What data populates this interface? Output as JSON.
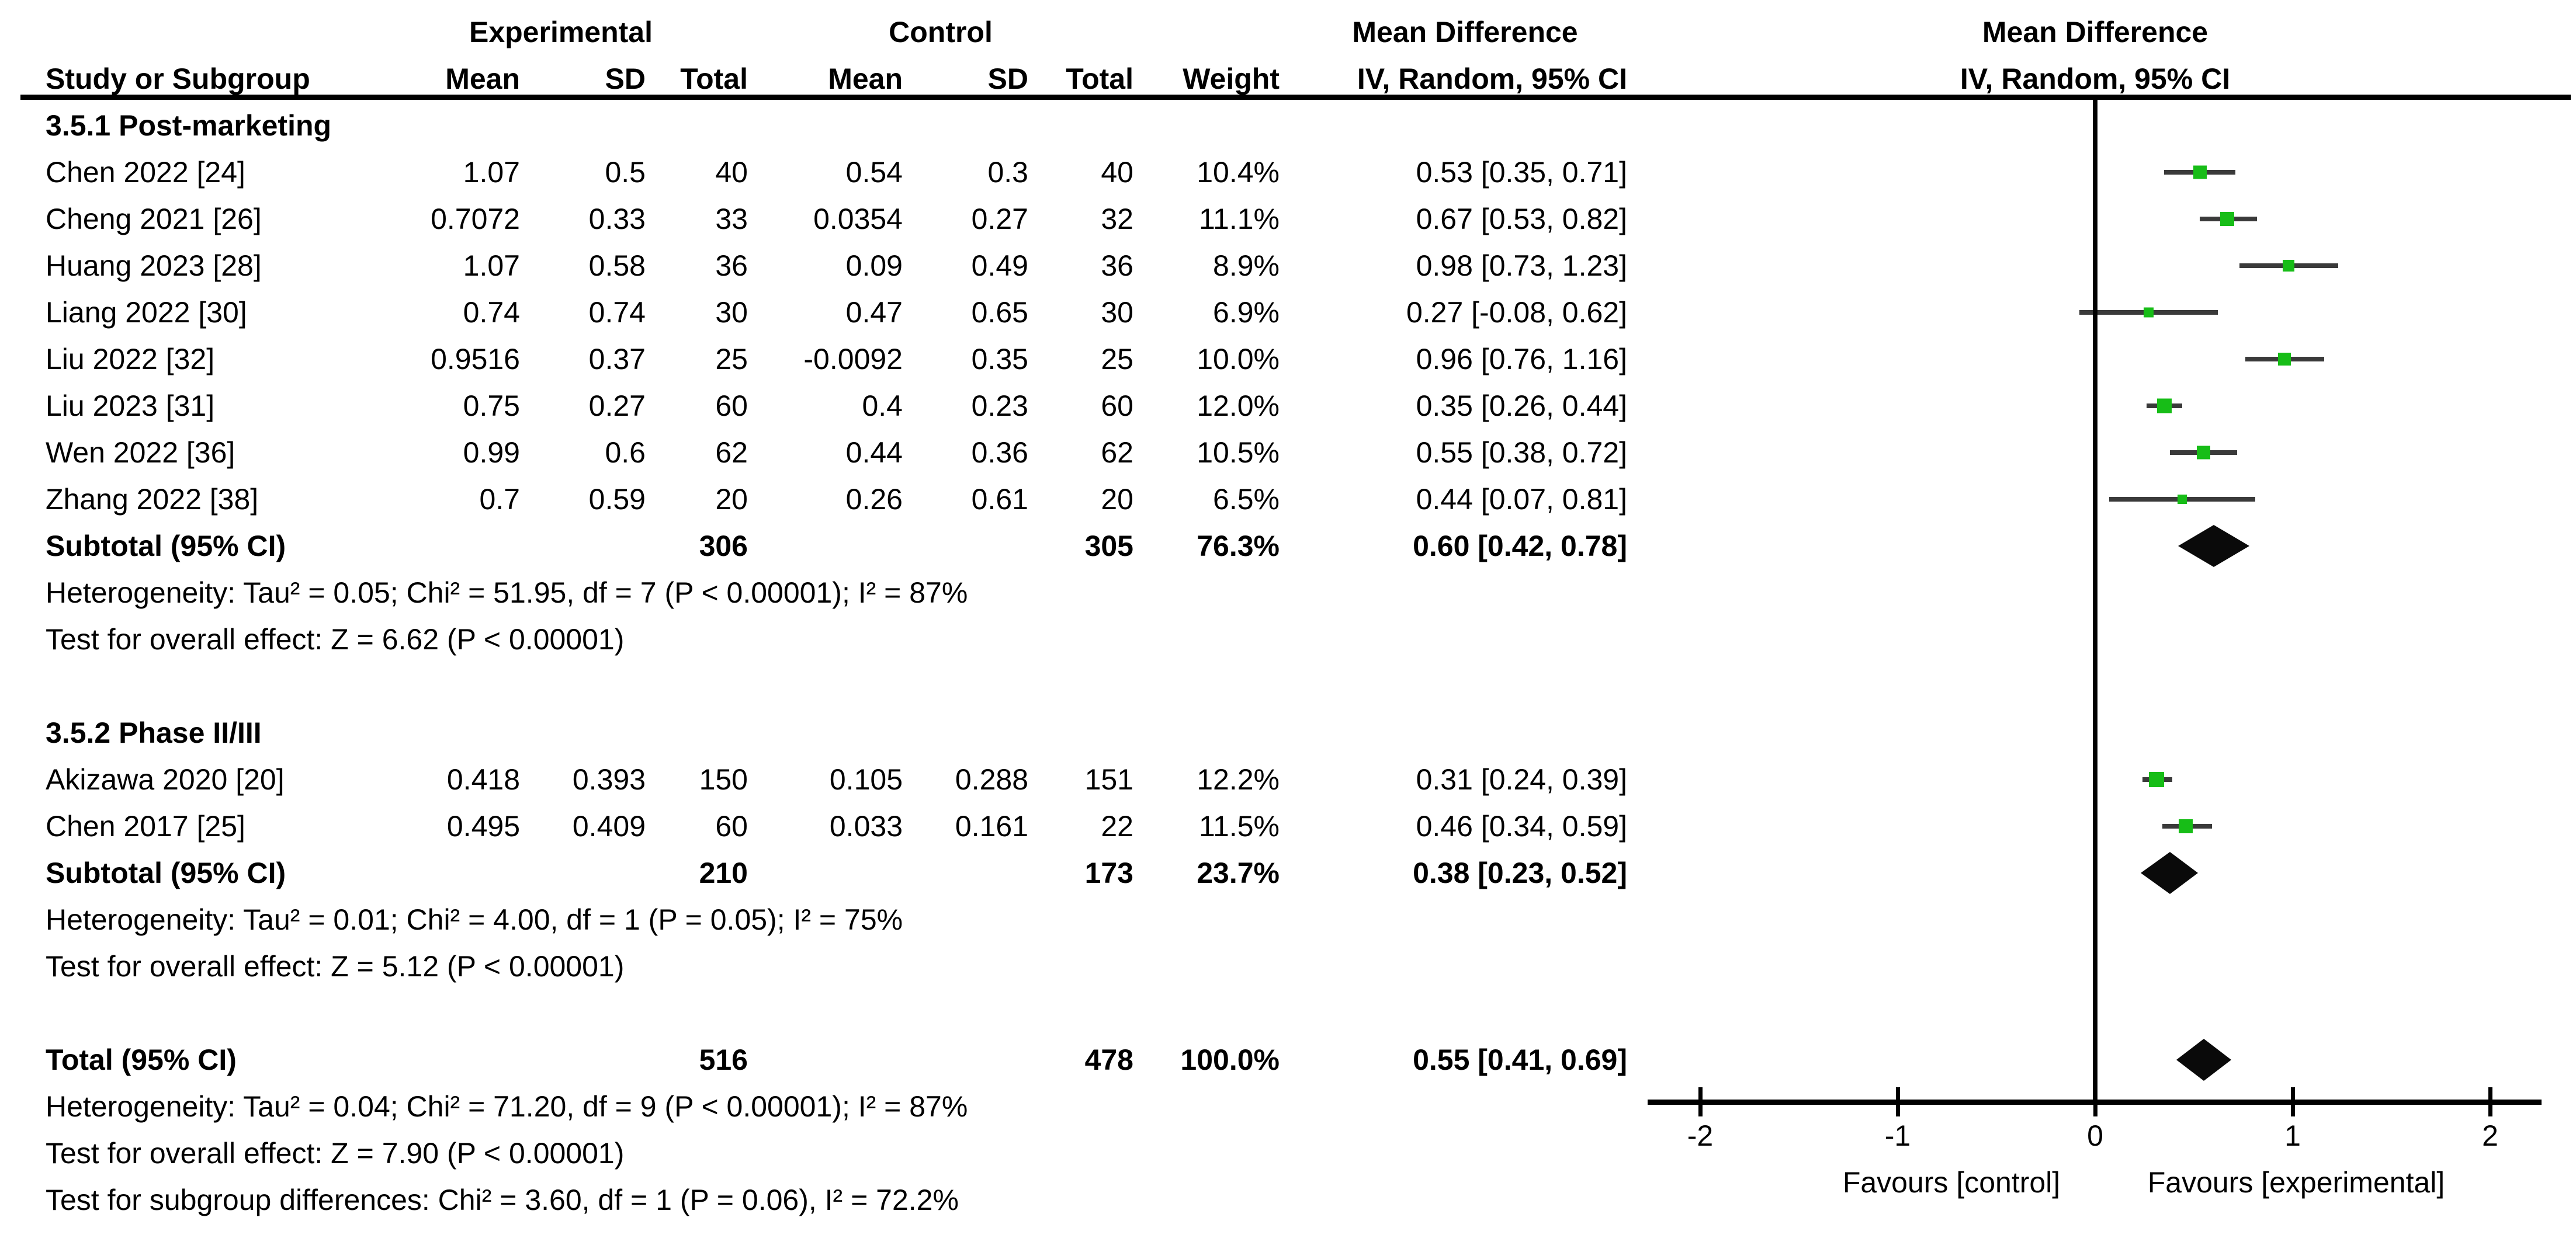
{
  "header": {
    "study": "Study or Subgroup",
    "experimental": "Experimental",
    "control": "Control",
    "mean": "Mean",
    "sd": "SD",
    "total": "Total",
    "weight": "Weight",
    "md": "Mean Difference",
    "iv": "IV, Random, 95% CI"
  },
  "plot": {
    "favours_left": "Favours [control]",
    "favours_right": "Favours [experimental]",
    "square_color": "#17bd17",
    "ci_color": "#3a3a3a",
    "diamond_color": "#0a0a0a",
    "line_color": "#000000"
  },
  "chart_data": {
    "type": "forest",
    "title": "Mean Difference",
    "method": "IV, Random, 95% CI",
    "xlabel_ticks": [
      -2,
      -1,
      0,
      1,
      2
    ],
    "xlim": [
      -2.3,
      2.45
    ],
    "favours_left": "Favours [control]",
    "favours_right": "Favours [experimental]",
    "subgroups": [
      {
        "label": "3.5.1 Post-marketing",
        "studies": [
          {
            "name": "Chen 2022 [24]",
            "e_mean": "1.07",
            "e_sd": "0.5",
            "e_n": "40",
            "c_mean": "0.54",
            "c_sd": "0.3",
            "c_n": "40",
            "weight": 10.4,
            "md": 0.53,
            "lo": 0.35,
            "hi": 0.71
          },
          {
            "name": "Cheng 2021 [26]",
            "e_mean": "0.7072",
            "e_sd": "0.33",
            "e_n": "33",
            "c_mean": "0.0354",
            "c_sd": "0.27",
            "c_n": "32",
            "weight": 11.1,
            "md": 0.67,
            "lo": 0.53,
            "hi": 0.82
          },
          {
            "name": "Huang 2023 [28]",
            "e_mean": "1.07",
            "e_sd": "0.58",
            "e_n": "36",
            "c_mean": "0.09",
            "c_sd": "0.49",
            "c_n": "36",
            "weight": 8.9,
            "md": 0.98,
            "lo": 0.73,
            "hi": 1.23
          },
          {
            "name": "Liang 2022 [30]",
            "e_mean": "0.74",
            "e_sd": "0.74",
            "e_n": "30",
            "c_mean": "0.47",
            "c_sd": "0.65",
            "c_n": "30",
            "weight": 6.9,
            "md": 0.27,
            "lo": -0.08,
            "hi": 0.62
          },
          {
            "name": "Liu 2022 [32]",
            "e_mean": "0.9516",
            "e_sd": "0.37",
            "e_n": "25",
            "c_mean": "-0.0092",
            "c_sd": "0.35",
            "c_n": "25",
            "weight": 10.0,
            "md": 0.96,
            "lo": 0.76,
            "hi": 1.16
          },
          {
            "name": "Liu 2023 [31]",
            "e_mean": "0.75",
            "e_sd": "0.27",
            "e_n": "60",
            "c_mean": "0.4",
            "c_sd": "0.23",
            "c_n": "60",
            "weight": 12.0,
            "md": 0.35,
            "lo": 0.26,
            "hi": 0.44
          },
          {
            "name": "Wen 2022 [36]",
            "e_mean": "0.99",
            "e_sd": "0.6",
            "e_n": "62",
            "c_mean": "0.44",
            "c_sd": "0.36",
            "c_n": "62",
            "weight": 10.5,
            "md": 0.55,
            "lo": 0.38,
            "hi": 0.72
          },
          {
            "name": "Zhang 2022 [38]",
            "e_mean": "0.7",
            "e_sd": "0.59",
            "e_n": "20",
            "c_mean": "0.26",
            "c_sd": "0.61",
            "c_n": "20",
            "weight": 6.5,
            "md": 0.44,
            "lo": 0.07,
            "hi": 0.81
          }
        ],
        "subtotal": {
          "label": "Subtotal (95% CI)",
          "e_n": "306",
          "c_n": "305",
          "weight": 76.3,
          "md": 0.6,
          "lo": 0.42,
          "hi": 0.78
        },
        "heterogeneity": "Heterogeneity: Tau² = 0.05; Chi² = 51.95, df = 7 (P < 0.00001); I² = 87%",
        "overall_effect": "Test for overall effect: Z = 6.62 (P < 0.00001)"
      },
      {
        "label": "3.5.2 Phase II/III",
        "studies": [
          {
            "name": "Akizawa 2020 [20]",
            "e_mean": "0.418",
            "e_sd": "0.393",
            "e_n": "150",
            "c_mean": "0.105",
            "c_sd": "0.288",
            "c_n": "151",
            "weight": 12.2,
            "md": 0.31,
            "lo": 0.24,
            "hi": 0.39
          },
          {
            "name": "Chen 2017 [25]",
            "e_mean": "0.495",
            "e_sd": "0.409",
            "e_n": "60",
            "c_mean": "0.033",
            "c_sd": "0.161",
            "c_n": "22",
            "weight": 11.5,
            "md": 0.46,
            "lo": 0.34,
            "hi": 0.59
          }
        ],
        "subtotal": {
          "label": "Subtotal (95% CI)",
          "e_n": "210",
          "c_n": "173",
          "weight": 23.7,
          "md": 0.38,
          "lo": 0.23,
          "hi": 0.52
        },
        "heterogeneity": "Heterogeneity: Tau² = 0.01; Chi² = 4.00, df = 1 (P = 0.05); I² = 75%",
        "overall_effect": "Test for overall effect: Z = 5.12 (P < 0.00001)"
      }
    ],
    "total": {
      "label": "Total (95% CI)",
      "e_n": "516",
      "c_n": "478",
      "weight": 100.0,
      "md": 0.55,
      "lo": 0.41,
      "hi": 0.69
    },
    "total_heterogeneity": "Heterogeneity: Tau² = 0.04; Chi² = 71.20, df = 9 (P < 0.00001); I² = 87%",
    "total_overall_effect": "Test for overall effect: Z = 7.90 (P < 0.00001)",
    "subgroup_differences": "Test for subgroup differences: Chi² = 3.60, df = 1 (P = 0.06), I² = 72.2%"
  }
}
